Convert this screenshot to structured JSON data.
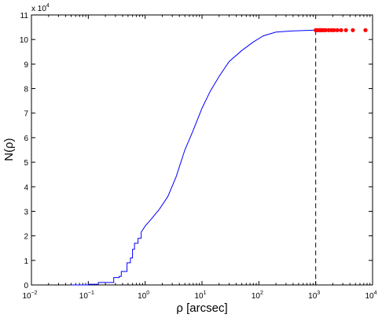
{
  "chart_data": {
    "type": "line",
    "title": "",
    "xlabel": "ρ [arcsec]",
    "ylabel": "N(ρ)",
    "x_scale": "log",
    "xlim": [
      0.01,
      10000
    ],
    "ylim": [
      0,
      110000
    ],
    "y_multiplier_label": {
      "base": "x 10",
      "exp": "4"
    },
    "x_ticks": [
      {
        "value": 0.01,
        "base": "10",
        "exp": "−2"
      },
      {
        "value": 0.1,
        "base": "10",
        "exp": "−1"
      },
      {
        "value": 1,
        "base": "10",
        "exp": "0"
      },
      {
        "value": 10,
        "base": "10",
        "exp": "1"
      },
      {
        "value": 100,
        "base": "10",
        "exp": "2"
      },
      {
        "value": 1000,
        "base": "10",
        "exp": "3"
      },
      {
        "value": 10000,
        "base": "10",
        "exp": "4"
      }
    ],
    "y_ticks": [
      {
        "value": 0,
        "label": "0"
      },
      {
        "value": 10000,
        "label": "1"
      },
      {
        "value": 20000,
        "label": "2"
      },
      {
        "value": 30000,
        "label": "3"
      },
      {
        "value": 40000,
        "label": "4"
      },
      {
        "value": 50000,
        "label": "5"
      },
      {
        "value": 60000,
        "label": "6"
      },
      {
        "value": 70000,
        "label": "7"
      },
      {
        "value": 80000,
        "label": "8"
      },
      {
        "value": 90000,
        "label": "9"
      },
      {
        "value": 100000,
        "label": "10"
      },
      {
        "value": 110000,
        "label": "11"
      }
    ],
    "grid": false,
    "series": [
      {
        "kind": "step-line",
        "color": "#0000ff",
        "points": [
          [
            0.05,
            0
          ],
          [
            0.1,
            300
          ],
          [
            0.15,
            1000
          ],
          [
            0.2,
            1000
          ],
          [
            0.28,
            3000
          ],
          [
            0.35,
            3500
          ],
          [
            0.38,
            5500
          ],
          [
            0.45,
            5500
          ],
          [
            0.48,
            9000
          ],
          [
            0.55,
            11000
          ],
          [
            0.6,
            14500
          ],
          [
            0.65,
            17000
          ],
          [
            0.75,
            19000
          ],
          [
            0.85,
            21500
          ],
          [
            1.0,
            24000
          ],
          [
            1.3,
            27000
          ],
          [
            1.8,
            31000
          ],
          [
            2.5,
            36000
          ],
          [
            3.5,
            44000
          ],
          [
            5,
            55000
          ],
          [
            7,
            63000
          ],
          [
            10,
            72000
          ],
          [
            14,
            79000
          ],
          [
            20,
            85000
          ],
          [
            30,
            91000
          ],
          [
            50,
            95500
          ],
          [
            80,
            99000
          ],
          [
            120,
            101500
          ],
          [
            200,
            103000
          ],
          [
            400,
            103500
          ],
          [
            700,
            103700
          ],
          [
            1000,
            103800
          ],
          [
            1500,
            103800
          ],
          [
            2500,
            103800
          ]
        ]
      },
      {
        "kind": "scatter",
        "color": "#ff0000",
        "points": [
          [
            1000,
            103800
          ],
          [
            1050,
            103800
          ],
          [
            1100,
            103800
          ],
          [
            1150,
            103800
          ],
          [
            1200,
            103800
          ],
          [
            1250,
            103800
          ],
          [
            1300,
            103800
          ],
          [
            1400,
            103800
          ],
          [
            1500,
            103800
          ],
          [
            1700,
            103800
          ],
          [
            1900,
            103800
          ],
          [
            2100,
            103800
          ],
          [
            2400,
            103800
          ],
          [
            2800,
            103800
          ],
          [
            3400,
            103800
          ],
          [
            4500,
            103800
          ],
          [
            7500,
            103800
          ]
        ]
      }
    ],
    "annotations": [
      {
        "kind": "vertical-dashed-line",
        "x": 1000,
        "color": "#000000"
      }
    ]
  }
}
